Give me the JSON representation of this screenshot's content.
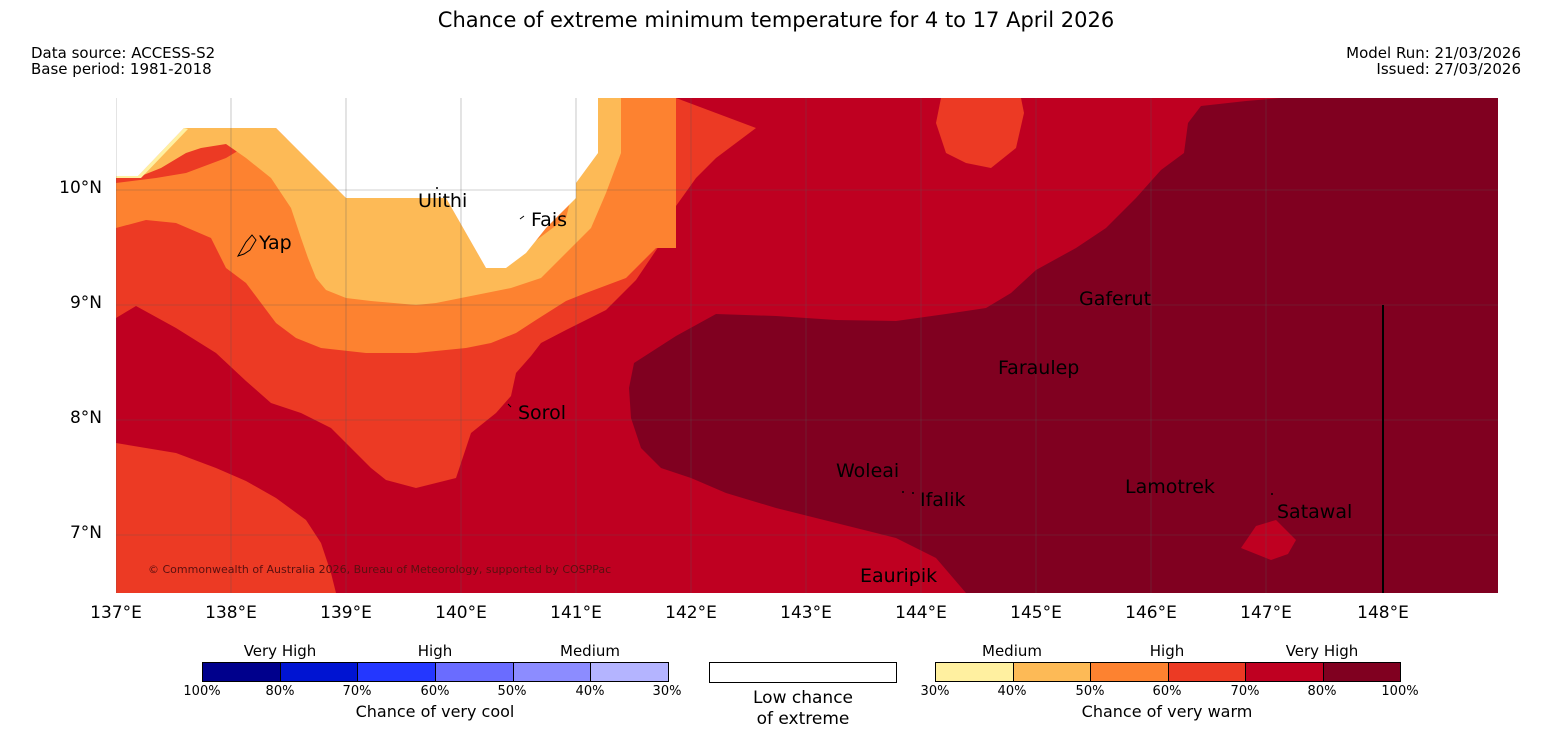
{
  "title": "Chance of extreme minimum temperature for 4 to 17 April 2026",
  "meta": {
    "data_source": "Data source: ACCESS-S2",
    "base_period": "Base period: 1981-2018",
    "model_run": "Model Run: 21/03/2026",
    "issued": "Issued: 27/03/2026"
  },
  "map": {
    "lat_labels": [
      "10°N",
      "9°N",
      "8°N",
      "7°N"
    ],
    "lon_labels": [
      "137°E",
      "138°E",
      "139°E",
      "140°E",
      "141°E",
      "142°E",
      "143°E",
      "144°E",
      "145°E",
      "146°E",
      "147°E",
      "148°E"
    ],
    "places": [
      "Ulithi",
      "Fais",
      "Yap",
      "Gaferut",
      "Faraulep",
      "Sorol",
      "Woleai",
      "Ifalik",
      "Lamotrek",
      "Satawal",
      "Eauripik"
    ],
    "copyright": "© Commonwealth of Australia 2026, Bureau of Meteorology, supported by COSPPac"
  },
  "legend_cool": {
    "categories": [
      "Very High",
      "High",
      "Medium"
    ],
    "ticks": [
      "100%",
      "80%",
      "70%",
      "60%",
      "50%",
      "40%",
      "30%"
    ],
    "colors": [
      "#00008c",
      "#0014d2",
      "#2437ff",
      "#6a6cff",
      "#8c8cff",
      "#b4b4ff"
    ],
    "title": "Chance of very cool"
  },
  "legend_neutral": {
    "line1": "Low chance",
    "line2": "of extreme",
    "color": "#ffffff"
  },
  "legend_warm": {
    "categories": [
      "Medium",
      "High",
      "Very High"
    ],
    "ticks": [
      "30%",
      "40%",
      "50%",
      "60%",
      "70%",
      "80%",
      "100%"
    ],
    "colors": [
      "#fff0a0",
      "#fdba56",
      "#fd8230",
      "#ec3a24",
      "#bf0021",
      "#800020"
    ],
    "title": "Chance of very warm"
  }
}
